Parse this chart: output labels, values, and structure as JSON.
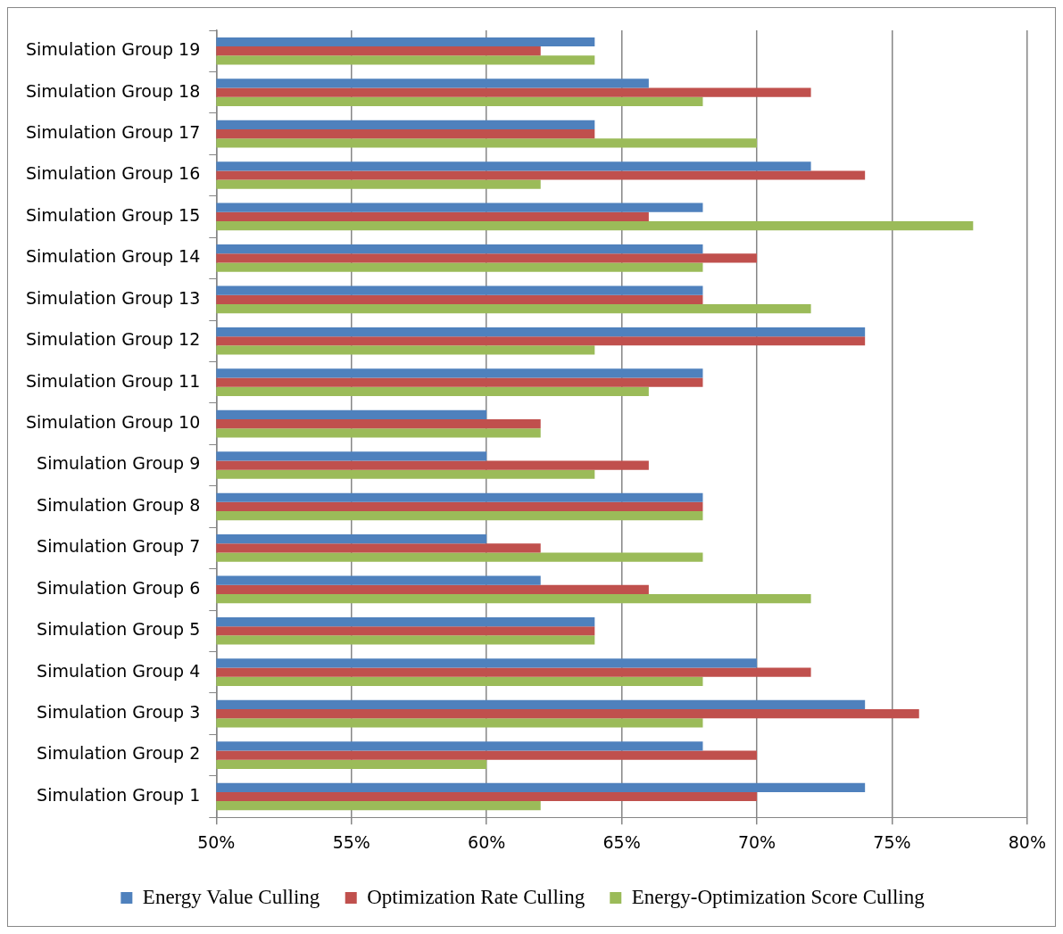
{
  "chart_data": {
    "type": "bar",
    "orientation": "horizontal",
    "categories": [
      "Simulation Group 19",
      "Simulation Group 18",
      "Simulation Group 17",
      "Simulation Group 16",
      "Simulation Group 15",
      "Simulation Group 14",
      "Simulation Group 13",
      "Simulation Group 12",
      "Simulation Group 11",
      "Simulation Group 10",
      "Simulation Group 9",
      "Simulation Group 8",
      "Simulation Group 7",
      "Simulation Group 6",
      "Simulation Group 5",
      "Simulation Group 4",
      "Simulation Group 3",
      "Simulation Group 2",
      "Simulation Group 1"
    ],
    "series": [
      {
        "name": "Energy Value Culling",
        "color": "#4f81bd",
        "values": [
          64,
          66,
          64,
          72,
          68,
          68,
          68,
          74,
          68,
          60,
          60,
          68,
          60,
          62,
          64,
          70,
          74,
          68,
          74
        ]
      },
      {
        "name": "Optimization Rate Culling",
        "color": "#c0504d",
        "values": [
          62,
          72,
          64,
          74,
          66,
          70,
          68,
          74,
          68,
          62,
          66,
          68,
          62,
          66,
          64,
          72,
          76,
          70,
          70
        ]
      },
      {
        "name": "Energy-Optimization Score Culling",
        "color": "#9bbb59",
        "values": [
          64,
          68,
          70,
          62,
          78,
          68,
          72,
          64,
          66,
          62,
          64,
          68,
          68,
          72,
          64,
          68,
          68,
          60,
          62
        ]
      }
    ],
    "xlim": [
      50,
      80
    ],
    "xticks": [
      {
        "value": 50,
        "label": "50%"
      },
      {
        "value": 55,
        "label": "55%"
      },
      {
        "value": 60,
        "label": "60%"
      },
      {
        "value": 65,
        "label": "65%"
      },
      {
        "value": 70,
        "label": "70%"
      },
      {
        "value": 75,
        "label": "75%"
      },
      {
        "value": 80,
        "label": "80%"
      }
    ],
    "grid": "x",
    "legend": "bottom"
  }
}
